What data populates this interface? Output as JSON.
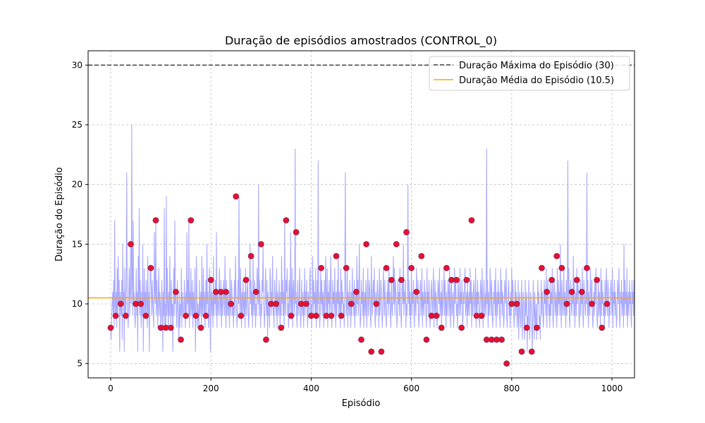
{
  "chart_data": {
    "type": "line",
    "title": "Duração de episódios amostrados (CONTROL_0)",
    "xlabel": "Episódio",
    "ylabel": "Duração do Episódio",
    "xlim": [
      -45,
      1045
    ],
    "ylim": [
      3.8,
      31.2
    ],
    "xticks": [
      0,
      200,
      400,
      600,
      800,
      1000
    ],
    "yticks": [
      5,
      10,
      15,
      20,
      25,
      30
    ],
    "grid": true,
    "legend_position": "top-right",
    "colors": {
      "episode_line": "#aaaaff",
      "sample_points": "#e8102a",
      "sample_edge": "#7b2d6e",
      "max_line": "#404040",
      "mean_line": "#ffa500"
    },
    "series": [
      {
        "name": "",
        "kind": "line",
        "x_start": 0,
        "x_step": 1,
        "values": [
          8,
          7,
          9,
          10,
          11,
          9,
          12,
          8,
          17,
          10,
          9,
          11,
          8,
          13,
          9,
          14,
          10,
          12,
          6,
          11,
          10,
          9,
          12,
          7,
          15,
          10,
          11,
          6,
          13,
          9,
          9,
          12,
          21,
          10,
          9,
          8,
          11,
          13,
          9,
          11,
          15,
          10,
          25,
          12,
          9,
          17,
          10,
          11,
          9,
          8,
          10,
          13,
          9,
          11,
          6,
          14,
          10,
          18,
          9,
          12,
          10,
          8,
          11,
          9,
          15,
          6,
          10,
          13,
          9,
          11,
          9,
          12,
          10,
          8,
          14,
          9,
          11,
          6,
          10,
          13,
          13,
          11,
          9,
          12,
          10,
          9,
          8,
          16,
          11,
          10,
          17,
          9,
          12,
          10,
          8,
          11,
          13,
          9,
          11,
          10,
          8,
          9,
          12,
          10,
          6,
          11,
          9,
          18,
          8,
          10,
          8,
          19,
          9,
          13,
          10,
          8,
          11,
          9,
          14,
          10,
          8,
          12,
          9,
          10,
          6,
          11,
          13,
          9,
          17,
          10,
          11,
          9,
          8,
          12,
          10,
          9,
          7,
          11,
          8,
          10,
          9,
          13,
          8,
          11,
          10,
          9,
          9,
          12,
          10,
          8,
          11,
          9,
          16,
          10,
          12,
          9,
          17,
          8,
          11,
          9,
          13,
          10,
          9,
          12,
          8,
          11,
          10,
          9,
          13,
          6,
          9,
          14,
          11,
          8,
          10,
          9,
          8,
          12,
          9,
          10,
          11,
          8,
          14,
          9,
          10,
          13,
          9,
          11,
          8,
          10,
          12,
          9,
          15,
          10,
          11,
          8,
          9,
          13,
          10,
          6,
          12,
          9,
          11,
          10,
          8,
          14,
          9,
          11,
          10,
          12,
          9,
          16,
          8,
          11,
          10,
          9,
          11,
          13,
          9,
          10,
          12,
          8,
          11,
          9,
          10,
          12,
          11,
          9,
          14,
          10,
          8,
          12,
          9,
          11,
          10,
          9,
          11,
          8,
          13,
          10,
          9,
          12,
          11,
          9,
          10,
          8,
          10,
          12,
          9,
          14,
          11,
          10,
          8,
          9,
          12,
          10,
          19,
          11,
          9,
          13,
          10,
          8,
          11,
          9,
          12,
          10,
          9,
          11,
          8,
          13,
          10,
          9,
          11,
          12,
          10,
          8,
          9,
          11,
          15,
          10,
          12,
          9,
          11,
          8,
          14,
          10,
          9,
          12,
          11,
          8,
          10,
          9,
          13,
          11,
          10,
          20,
          9,
          12,
          11,
          8,
          10,
          9,
          12,
          11,
          15,
          10,
          9,
          8,
          11,
          13,
          10,
          9,
          12,
          7,
          11,
          9,
          10,
          8,
          13,
          12,
          9,
          11,
          10,
          14,
          9,
          10,
          8,
          12,
          11,
          10,
          9,
          13,
          8,
          11,
          10,
          9,
          12,
          10,
          8,
          11,
          9,
          14,
          10,
          12,
          9,
          11,
          8,
          17,
          10,
          9,
          12,
          11,
          13,
          9,
          10,
          8,
          12,
          11,
          9,
          16,
          10,
          9,
          13,
          8,
          11,
          12,
          10,
          9,
          23,
          10,
          11,
          9,
          8,
          12,
          10,
          9,
          11,
          13,
          10,
          8,
          9,
          12,
          10,
          9,
          11,
          8,
          10,
          13,
          9,
          11,
          10,
          12,
          9,
          8,
          11,
          10,
          9,
          12,
          13,
          9,
          10,
          8,
          11,
          14,
          9,
          12,
          10,
          11,
          9,
          13,
          8,
          10,
          12,
          9,
          22,
          10,
          11,
          8,
          9,
          13,
          10,
          12,
          9,
          11,
          10,
          8,
          12,
          9,
          11,
          14,
          10,
          9,
          13,
          8,
          11,
          10,
          12,
          9,
          10,
          14,
          11,
          8,
          9,
          12,
          10,
          11,
          9,
          13,
          10,
          8,
          11,
          9,
          12,
          10,
          14,
          9,
          11,
          10,
          8,
          13,
          9,
          12,
          10,
          11,
          9,
          10,
          8,
          12,
          21,
          11,
          9,
          10,
          13,
          8,
          11,
          10,
          9,
          12,
          10,
          8,
          11,
          9,
          13,
          10,
          11,
          9,
          12,
          8,
          10,
          11,
          9,
          14,
          10,
          12,
          9,
          11,
          15,
          10,
          8,
          9,
          12,
          10,
          11,
          9,
          13,
          8,
          10,
          11,
          9,
          12,
          10,
          8,
          11,
          13,
          9,
          10,
          12,
          11,
          9,
          8,
          14,
          10,
          9,
          11,
          12,
          10,
          13,
          9,
          8,
          11,
          10,
          9,
          12,
          11,
          10,
          8,
          13,
          9,
          10,
          12,
          11,
          9,
          8,
          10,
          13,
          11,
          9,
          12,
          10,
          9,
          8,
          11,
          10,
          12,
          9,
          13,
          10,
          11,
          9,
          8,
          12,
          10,
          9,
          11,
          14,
          10,
          13,
          9,
          12,
          11,
          10,
          8,
          9,
          12,
          10,
          11,
          9,
          13,
          10,
          9,
          8,
          11,
          12,
          10,
          15,
          9,
          11,
          10,
          12,
          8,
          10,
          9,
          11,
          20,
          10,
          12,
          9,
          11,
          8,
          10,
          13,
          9,
          11,
          10,
          12,
          9,
          8,
          11,
          10,
          9,
          13,
          11,
          10,
          12,
          9,
          8,
          10,
          11,
          12,
          9,
          10,
          13,
          8,
          11,
          10,
          9,
          12,
          10,
          11,
          9,
          8,
          13,
          10,
          11,
          9,
          12,
          10,
          8,
          9,
          11,
          12,
          10,
          9,
          11,
          13,
          8,
          10,
          12,
          9,
          11,
          10,
          8,
          9,
          12,
          11,
          10,
          13,
          9,
          10,
          11,
          8,
          12,
          9,
          10,
          11,
          13,
          9,
          12,
          10,
          8,
          11,
          9,
          10,
          12,
          11,
          9,
          13,
          10,
          8,
          11,
          12,
          9,
          10,
          11,
          8,
          9,
          13,
          10,
          12,
          11,
          9,
          10,
          8,
          12,
          11,
          9,
          10,
          13,
          9,
          11,
          10,
          12,
          8,
          9,
          11,
          10,
          12,
          13,
          9,
          10,
          11,
          8,
          12,
          9,
          10,
          11,
          9,
          13,
          10,
          12,
          8,
          11,
          9,
          10,
          12,
          11,
          9,
          10,
          13,
          8,
          11,
          9,
          12,
          10,
          11,
          9,
          8,
          10,
          12,
          11,
          9,
          13,
          10,
          8,
          11,
          12,
          9,
          10,
          11,
          9,
          23,
          10,
          12,
          8,
          11,
          9,
          10,
          13,
          11,
          9,
          12,
          10,
          8,
          9,
          11,
          10,
          12,
          9,
          13,
          8,
          10,
          11,
          9,
          12,
          10,
          11,
          9,
          8,
          13,
          10,
          12,
          9,
          11,
          10,
          8,
          9,
          12,
          11,
          10,
          13,
          9,
          8,
          10,
          11,
          12,
          9,
          10,
          8,
          11,
          9,
          13,
          10,
          12,
          11,
          9,
          8,
          10,
          12,
          9,
          11,
          10,
          8,
          9,
          12,
          7,
          10,
          11,
          9,
          8,
          10,
          12,
          7,
          9,
          11,
          10,
          8,
          7,
          12,
          9,
          10,
          11,
          6,
          9,
          8,
          12,
          10,
          7,
          9,
          11,
          10,
          8,
          6,
          9,
          12,
          10,
          7,
          11,
          9,
          8,
          10,
          7,
          9,
          12,
          10,
          11,
          8,
          9,
          7,
          10,
          12,
          9,
          11,
          10,
          8,
          9,
          12,
          10,
          11,
          9,
          13,
          8,
          10,
          12,
          11,
          9,
          10,
          8,
          12,
          9,
          11,
          10,
          13,
          9,
          8,
          11,
          12,
          10,
          9,
          11,
          10,
          8,
          13,
          9,
          12,
          10,
          11,
          9,
          15,
          10,
          8,
          12,
          11,
          9,
          10,
          13,
          9,
          11,
          10,
          8,
          12,
          9,
          11,
          22,
          10,
          13,
          9,
          8,
          11,
          12,
          10,
          9,
          11,
          10,
          14,
          9,
          12,
          8,
          10,
          11,
          9,
          13,
          10,
          12,
          11,
          9,
          8,
          10,
          12,
          9,
          11,
          10,
          13,
          9,
          8,
          12,
          11,
          10,
          9,
          11,
          10,
          21,
          9,
          12,
          8,
          11,
          10,
          9,
          13,
          11,
          10,
          12,
          9,
          8,
          10,
          11,
          9,
          12,
          10,
          13,
          11,
          9,
          8,
          10,
          12,
          9,
          11,
          10,
          8,
          13,
          9,
          12,
          10,
          11,
          9,
          10,
          8,
          12,
          9,
          11,
          13,
          10,
          9,
          12,
          11,
          8,
          10,
          9,
          11,
          12,
          10,
          9,
          13,
          8,
          11,
          10,
          12,
          9,
          11,
          10,
          8,
          9,
          12,
          11,
          10,
          13,
          9,
          8,
          11,
          10,
          12,
          9,
          10,
          11,
          8,
          15,
          9,
          12,
          10,
          11,
          9,
          13,
          8,
          10,
          11,
          9,
          12,
          10,
          11,
          9,
          8,
          12,
          10,
          11,
          9,
          12
        ]
      },
      {
        "name": "",
        "kind": "scatter",
        "x": [
          0,
          10,
          20,
          30,
          40,
          50,
          60,
          70,
          80,
          90,
          100,
          110,
          120,
          130,
          140,
          150,
          160,
          170,
          180,
          190,
          200,
          210,
          220,
          230,
          240,
          250,
          260,
          270,
          280,
          290,
          300,
          310,
          320,
          330,
          340,
          350,
          360,
          370,
          380,
          390,
          400,
          410,
          420,
          430,
          440,
          450,
          460,
          470,
          480,
          490,
          500,
          510,
          520,
          530,
          540,
          550,
          560,
          570,
          580,
          590,
          600,
          610,
          620,
          630,
          640,
          650,
          660,
          670,
          680,
          690,
          700,
          710,
          720,
          730,
          740,
          750,
          760,
          770,
          780,
          790,
          800,
          810,
          820,
          830,
          840,
          850,
          860,
          870,
          880,
          890,
          900,
          910,
          920,
          930,
          940,
          950,
          960,
          970,
          980,
          990
        ],
        "y": [
          8,
          9,
          10,
          9,
          15,
          10,
          10,
          9,
          13,
          17,
          8,
          8,
          8,
          11,
          7,
          9,
          17,
          9,
          8,
          9,
          12,
          11,
          11,
          11,
          10,
          19,
          9,
          12,
          14,
          11,
          15,
          7,
          10,
          10,
          8,
          17,
          9,
          16,
          10,
          10,
          9,
          9,
          13,
          9,
          9,
          14,
          9,
          13,
          10,
          11,
          7,
          15,
          6,
          10,
          6,
          13,
          12,
          15,
          12,
          16,
          13,
          11,
          14,
          7,
          9,
          9,
          8,
          13,
          12,
          12,
          8,
          12,
          17,
          9,
          9,
          7,
          7,
          7,
          7,
          5,
          10,
          10,
          6,
          8,
          6,
          8,
          13,
          11,
          12,
          14,
          13,
          10,
          11,
          12,
          11,
          13,
          10,
          12,
          8,
          10
        ]
      },
      {
        "name": "Duração Máxima do Episódio (30)",
        "kind": "hline",
        "value": 30
      },
      {
        "name": "Duração Média do Episódio (10.5)",
        "kind": "hline",
        "value": 10.5
      }
    ]
  }
}
